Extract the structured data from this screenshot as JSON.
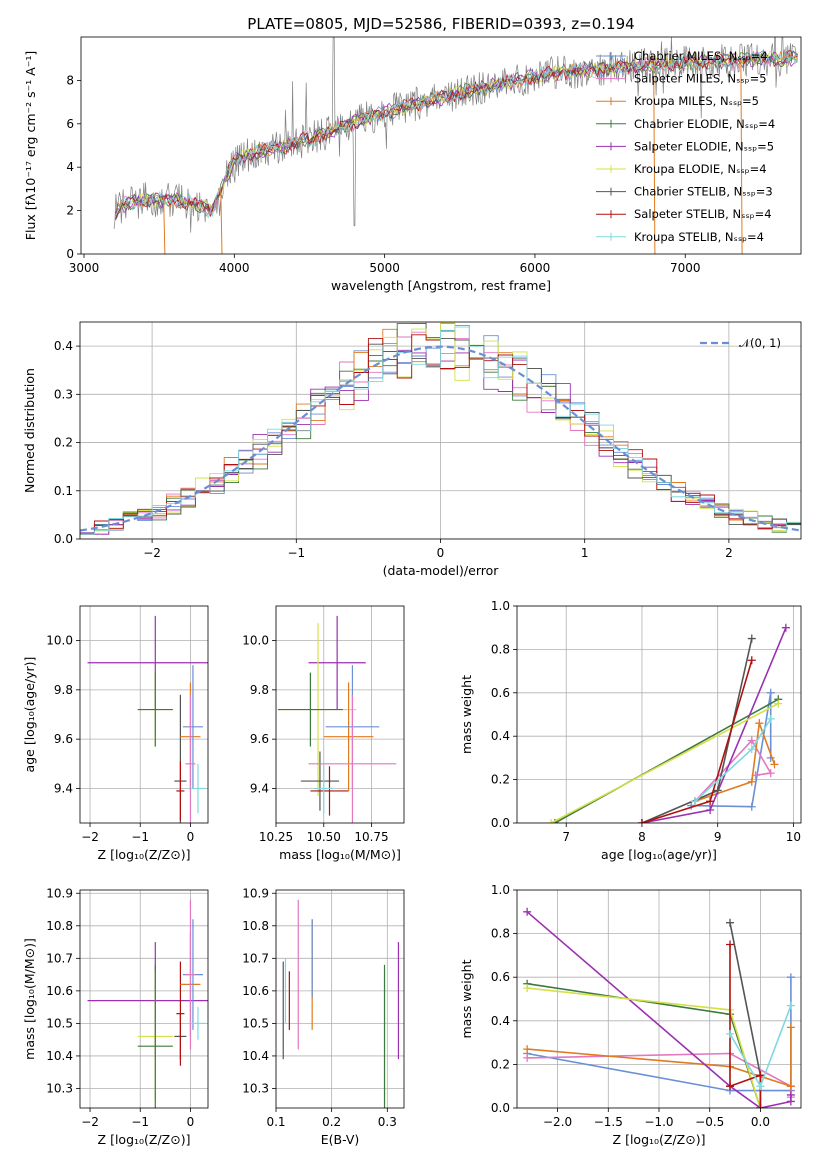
{
  "figure": {
    "title": "PLATE=0805, MJD=52586, FIBERID=0393, z=0.194"
  },
  "chart_data": [
    {
      "id": "spectrum",
      "type": "line",
      "xlabel": "wavelength [Angstrom, rest frame]",
      "ylabel": "Flux [fλ10⁻¹⁷ erg cm⁻² s⁻¹ A⁻¹]",
      "xlim": [
        2980,
        7770
      ],
      "ylim": [
        0,
        10
      ],
      "xticks": [
        3000,
        4000,
        5000,
        6000,
        7000
      ],
      "yticks": [
        0,
        2,
        4,
        6,
        8
      ],
      "grid": false,
      "legend_position": "top-right",
      "series": [
        {
          "name": "Chabrier MILES, Nₛₛₚ=4",
          "color": "#6a8fd6"
        },
        {
          "name": "Salpeter MILES, Nₛₛₚ=5",
          "color": "#e377c2"
        },
        {
          "name": "Kroupa MILES, Nₛₛₚ=5",
          "color": "#e07b20"
        },
        {
          "name": "Chabrier ELODIE, Nₛₛₚ=4",
          "color": "#3d7a3d"
        },
        {
          "name": "Salpeter ELODIE, Nₛₛₚ=5",
          "color": "#9b30b0"
        },
        {
          "name": "Kroupa ELODIE, Nₛₛₚ=4",
          "color": "#d4e04a"
        },
        {
          "name": "Chabrier STELIB, Nₛₛₚ=3",
          "color": "#555555"
        },
        {
          "name": "Salpeter STELIB, Nₛₛₚ=4",
          "color": "#b01010"
        },
        {
          "name": "Kroupa STELIB, Nₛₛₚ=4",
          "color": "#7fd8e0"
        }
      ],
      "data_color": "#808080",
      "continuum": {
        "x": [
          3200,
          3250,
          3400,
          3600,
          3750,
          3850,
          3950,
          4000,
          4100,
          4300,
          4500,
          4700,
          4900,
          5200,
          5500,
          5800,
          6100,
          6400,
          6700,
          7000,
          7300,
          7500,
          7750
        ],
        "y": [
          1.9,
          2.2,
          2.5,
          2.5,
          2.3,
          2.0,
          3.6,
          4.3,
          4.6,
          4.9,
          5.3,
          5.8,
          6.3,
          6.9,
          7.4,
          7.9,
          8.3,
          8.5,
          8.7,
          8.8,
          8.9,
          9.0,
          9.0
        ]
      }
    },
    {
      "id": "residuals",
      "type": "line",
      "xlabel": "(data-model)/error",
      "ylabel": "Normed distribution",
      "xlim": [
        -2.5,
        2.5
      ],
      "ylim": [
        0,
        0.45
      ],
      "xticks": [
        -2,
        -1,
        0,
        1,
        2
      ],
      "yticks": [
        0.0,
        0.1,
        0.2,
        0.3,
        0.4
      ],
      "grid": true,
      "legend_position": "top-right",
      "gaussian_label": "𝒩(0, 1)",
      "gaussian_color": "#6a8fd6",
      "bin_width": 0.1
    },
    {
      "id": "z-age",
      "type": "scatter",
      "xlabel": "Z [log₁₀(Z/Z⊙)]",
      "ylabel": "age  [log₁₀(age/yr)]",
      "xlim": [
        -2.2,
        0.35
      ],
      "ylim": [
        9.26,
        10.14
      ],
      "xticks": [
        -2,
        -1,
        0
      ],
      "yticks": [
        9.4,
        9.6,
        9.8,
        10.0
      ],
      "grid": true,
      "points": [
        {
          "x": -0.7,
          "y": 9.91,
          "xerr": 1.35,
          "yerr": 0.19,
          "color": "#9b30b0"
        },
        {
          "x": -0.7,
          "y": 9.72,
          "xerr": 0.35,
          "yerr": 0.15,
          "color": "#d4e04a"
        },
        {
          "x": -0.7,
          "y": 9.72,
          "xerr": 0.35,
          "yerr": 0.15,
          "color": "#3d7a3d"
        },
        {
          "x": -0.2,
          "y": 9.43,
          "xerr": 0.12,
          "yerr": 0.35,
          "color": "#555555"
        },
        {
          "x": -0.2,
          "y": 9.39,
          "xerr": 0.08,
          "yerr": 0.12,
          "color": "#b01010"
        },
        {
          "x": 0.0,
          "y": 9.61,
          "xerr": 0.2,
          "yerr": 0.22,
          "color": "#e07b20"
        },
        {
          "x": 0.05,
          "y": 9.65,
          "xerr": 0.2,
          "yerr": 0.25,
          "color": "#6a8fd6"
        },
        {
          "x": 0.0,
          "y": 9.5,
          "xerr": 0.1,
          "yerr": 0.28,
          "color": "#e377c2"
        },
        {
          "x": 0.15,
          "y": 9.4,
          "xerr": 0.15,
          "yerr": 0.1,
          "color": "#7fd8e0"
        }
      ]
    },
    {
      "id": "mass-age",
      "type": "scatter",
      "xlabel": "mass [log₁₀(M/M⊙)]",
      "ylabel": "",
      "xlim": [
        10.25,
        10.92
      ],
      "ylim": [
        9.26,
        10.14
      ],
      "xticks": [
        10.25,
        10.5,
        10.75
      ],
      "yticks": [
        9.4,
        9.6,
        9.8,
        10.0
      ],
      "grid": true,
      "points": [
        {
          "x": 10.57,
          "y": 9.91,
          "xerr": 0.15,
          "yerr": 0.19,
          "color": "#9b30b0"
        },
        {
          "x": 10.47,
          "y": 9.72,
          "xerr": 0.2,
          "yerr": 0.35,
          "color": "#d4e04a"
        },
        {
          "x": 10.43,
          "y": 9.72,
          "xerr": 0.17,
          "yerr": 0.15,
          "color": "#3d7a3d"
        },
        {
          "x": 10.48,
          "y": 9.43,
          "xerr": 0.1,
          "yerr": 0.12,
          "color": "#555555"
        },
        {
          "x": 10.53,
          "y": 9.39,
          "xerr": 0.1,
          "yerr": 0.1,
          "color": "#b01010"
        },
        {
          "x": 10.63,
          "y": 9.61,
          "xerr": 0.13,
          "yerr": 0.22,
          "color": "#e07b20"
        },
        {
          "x": 10.65,
          "y": 9.65,
          "xerr": 0.14,
          "yerr": 0.25,
          "color": "#6a8fd6"
        },
        {
          "x": 10.65,
          "y": 9.5,
          "xerr": 0.23,
          "yerr": 0.28,
          "color": "#e377c2"
        },
        {
          "x": 10.5,
          "y": 9.4,
          "xerr": 0.05,
          "yerr": 0.1,
          "color": "#7fd8e0"
        }
      ]
    },
    {
      "id": "age-weight",
      "type": "line",
      "xlabel": "age  [log₁₀(age/yr)]",
      "ylabel": "mass weight",
      "xlim": [
        6.35,
        10.1
      ],
      "ylim": [
        0,
        1
      ],
      "xticks": [
        7,
        8,
        9,
        10
      ],
      "yticks": [
        0.0,
        0.2,
        0.4,
        0.6,
        0.8,
        1.0
      ],
      "grid": true,
      "series": [
        {
          "color": "#6a8fd6",
          "x": [
            8.65,
            9.45,
            9.7,
            9.7
          ],
          "y": [
            0.08,
            0.075,
            0.6,
            0.3
          ]
        },
        {
          "color": "#e377c2",
          "x": [
            8.7,
            9.45,
            9.7,
            9.5
          ],
          "y": [
            0.1,
            0.38,
            0.23,
            0.22
          ]
        },
        {
          "color": "#e07b20",
          "x": [
            8.7,
            9.45,
            9.55,
            9.75
          ],
          "y": [
            0.1,
            0.19,
            0.46,
            0.27
          ]
        },
        {
          "color": "#3d7a3d",
          "x": [
            6.85,
            9.8
          ],
          "y": [
            0.0,
            0.57
          ]
        },
        {
          "color": "#9b30b0",
          "x": [
            8.0,
            8.9,
            9.9
          ],
          "y": [
            0.0,
            0.06,
            0.9
          ]
        },
        {
          "color": "#d4e04a",
          "x": [
            6.8,
            9.8
          ],
          "y": [
            0.0,
            0.55
          ]
        },
        {
          "color": "#555555",
          "x": [
            8.0,
            9.0,
            9.45
          ],
          "y": [
            0.0,
            0.15,
            0.85
          ]
        },
        {
          "color": "#b01010",
          "x": [
            8.0,
            8.9,
            9.45
          ],
          "y": [
            0.0,
            0.1,
            0.75
          ]
        },
        {
          "color": "#7fd8e0",
          "x": [
            8.7,
            9.45,
            9.7
          ],
          "y": [
            0.1,
            0.34,
            0.48
          ]
        }
      ]
    },
    {
      "id": "z-mass",
      "type": "scatter",
      "xlabel": "Z [log₁₀(Z/Z⊙)]",
      "ylabel": "mass [log₁₀(M/M⊙)]",
      "xlim": [
        -2.2,
        0.35
      ],
      "ylim": [
        10.24,
        10.91
      ],
      "xticks": [
        -2,
        -1,
        0
      ],
      "yticks": [
        10.3,
        10.4,
        10.5,
        10.6,
        10.7,
        10.8,
        10.9
      ],
      "grid": true,
      "points": [
        {
          "x": -0.7,
          "y": 10.57,
          "xerr": 1.35,
          "yerr": 0.18,
          "color": "#9b30b0"
        },
        {
          "x": -0.7,
          "y": 10.46,
          "xerr": 0.35,
          "yerr": 0.2,
          "color": "#d4e04a"
        },
        {
          "x": -0.7,
          "y": 10.43,
          "xerr": 0.35,
          "yerr": 0.25,
          "color": "#3d7a3d"
        },
        {
          "x": -0.2,
          "y": 10.46,
          "xerr": 0.12,
          "yerr": 0.07,
          "color": "#555555"
        },
        {
          "x": -0.2,
          "y": 10.53,
          "xerr": 0.08,
          "yerr": 0.16,
          "color": "#b01010"
        },
        {
          "x": 0.0,
          "y": 10.62,
          "xerr": 0.2,
          "yerr": 0.16,
          "color": "#e07b20"
        },
        {
          "x": 0.05,
          "y": 10.65,
          "xerr": 0.2,
          "yerr": 0.17,
          "color": "#6a8fd6"
        },
        {
          "x": 0.0,
          "y": 10.65,
          "xerr": 0.1,
          "yerr": 0.23,
          "color": "#e377c2"
        },
        {
          "x": 0.15,
          "y": 10.5,
          "xerr": 0.15,
          "yerr": 0.05,
          "color": "#7fd8e0"
        }
      ]
    },
    {
      "id": "ebv-mass",
      "type": "scatter",
      "xlabel": "E(B-V)",
      "ylabel": "",
      "xlim": [
        0.1,
        0.33
      ],
      "ylim": [
        10.24,
        10.91
      ],
      "xticks": [
        0.1,
        0.2,
        0.3
      ],
      "yticks": [
        10.3,
        10.4,
        10.5,
        10.6,
        10.7,
        10.8,
        10.9
      ],
      "grid": true,
      "points": [
        {
          "x": 0.32,
          "y": 10.57,
          "xerr": 0,
          "yerr": 0.18,
          "color": "#9b30b0"
        },
        {
          "x": 0.295,
          "y": 10.46,
          "xerr": 0,
          "yerr": 0.2,
          "color": "#d4e04a"
        },
        {
          "x": 0.295,
          "y": 10.43,
          "xerr": 0,
          "yerr": 0.25,
          "color": "#3d7a3d"
        },
        {
          "x": 0.113,
          "y": 10.54,
          "xerr": 0,
          "yerr": 0.15,
          "color": "#555555"
        },
        {
          "x": 0.124,
          "y": 10.57,
          "xerr": 0,
          "yerr": 0.09,
          "color": "#b01010"
        },
        {
          "x": 0.165,
          "y": 10.65,
          "xerr": 0,
          "yerr": 0.17,
          "color": "#e07b20"
        },
        {
          "x": 0.165,
          "y": 10.7,
          "xerr": 0,
          "yerr": 0.12,
          "color": "#6a8fd6"
        },
        {
          "x": 0.14,
          "y": 10.65,
          "xerr": 0,
          "yerr": 0.23,
          "color": "#e377c2"
        },
        {
          "x": 0.117,
          "y": 10.6,
          "xerr": 0,
          "yerr": 0.1,
          "color": "#7fd8e0"
        }
      ]
    },
    {
      "id": "z-weight",
      "type": "line",
      "xlabel": "Z [log₁₀(Z/Z⊙)]",
      "ylabel": "mass weight",
      "xlim": [
        -2.4,
        0.4
      ],
      "ylim": [
        0,
        1
      ],
      "xticks": [
        -2.0,
        -1.5,
        -1.0,
        -0.5,
        0.0
      ],
      "yticks": [
        0.0,
        0.2,
        0.4,
        0.6,
        0.8,
        1.0
      ],
      "grid": true,
      "series": [
        {
          "color": "#6a8fd6",
          "x": [
            -2.3,
            -0.3,
            0.3,
            0.3
          ],
          "y": [
            0.25,
            0.08,
            0.08,
            0.6
          ]
        },
        {
          "color": "#e377c2",
          "x": [
            -2.3,
            -0.3,
            0.3,
            0.3
          ],
          "y": [
            0.23,
            0.25,
            0.1,
            0.05
          ]
        },
        {
          "color": "#e07b20",
          "x": [
            -2.3,
            -0.3,
            0.3,
            0.3
          ],
          "y": [
            0.27,
            0.19,
            0.1,
            0.37
          ]
        },
        {
          "color": "#3d7a3d",
          "x": [
            -2.3,
            -0.3,
            0.0
          ],
          "y": [
            0.57,
            0.43,
            0.0
          ]
        },
        {
          "color": "#9b30b0",
          "x": [
            -2.3,
            -0.3,
            0.0,
            0.3,
            0.3
          ],
          "y": [
            0.9,
            0.1,
            0.0,
            0.03,
            0.06
          ]
        },
        {
          "color": "#d4e04a",
          "x": [
            -2.3,
            -0.3,
            0.0
          ],
          "y": [
            0.55,
            0.45,
            0.0
          ]
        },
        {
          "color": "#555555",
          "x": [
            -0.3,
            0.0,
            0.0
          ],
          "y": [
            0.85,
            0.15,
            0.0
          ]
        },
        {
          "color": "#b01010",
          "x": [
            -0.3,
            -0.3,
            0.0,
            0.0
          ],
          "y": [
            0.75,
            0.1,
            0.15,
            0.0
          ]
        },
        {
          "color": "#7fd8e0",
          "x": [
            -0.3,
            0.0,
            0.3
          ],
          "y": [
            0.34,
            0.1,
            0.47
          ]
        }
      ]
    }
  ]
}
